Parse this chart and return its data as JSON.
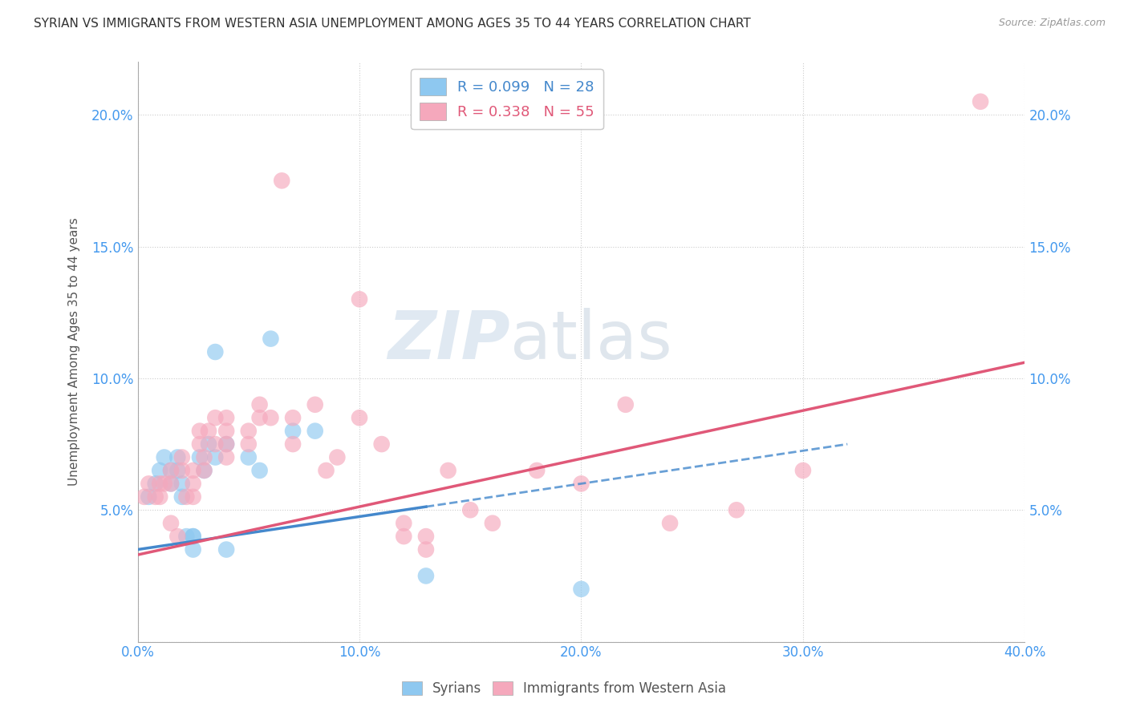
{
  "title": "SYRIAN VS IMMIGRANTS FROM WESTERN ASIA UNEMPLOYMENT AMONG AGES 35 TO 44 YEARS CORRELATION CHART",
  "source": "Source: ZipAtlas.com",
  "ylabel": "Unemployment Among Ages 35 to 44 years",
  "xlim": [
    0.0,
    0.4
  ],
  "ylim": [
    0.0,
    0.22
  ],
  "xticks": [
    0.0,
    0.1,
    0.2,
    0.3,
    0.4
  ],
  "xtick_labels": [
    "0.0%",
    "10.0%",
    "20.0%",
    "30.0%",
    "40.0%"
  ],
  "yticks": [
    0.0,
    0.05,
    0.1,
    0.15,
    0.2
  ],
  "ytick_labels": [
    "",
    "5.0%",
    "10.0%",
    "15.0%",
    "20.0%"
  ],
  "blue_R": 0.099,
  "blue_N": 28,
  "pink_R": 0.338,
  "pink_N": 55,
  "blue_color": "#8EC8F0",
  "pink_color": "#F5A8BC",
  "blue_trend_color": "#4488CC",
  "pink_trend_color": "#E05878",
  "blue_trend_style": "--",
  "pink_trend_style": "-",
  "watermark_zip": "ZIP",
  "watermark_atlas": "atlas",
  "legend_label_blue": "Syrians",
  "legend_label_pink": "Immigrants from Western Asia",
  "blue_x": [
    0.005,
    0.008,
    0.01,
    0.012,
    0.015,
    0.015,
    0.018,
    0.018,
    0.02,
    0.02,
    0.022,
    0.025,
    0.025,
    0.025,
    0.028,
    0.03,
    0.032,
    0.035,
    0.035,
    0.04,
    0.04,
    0.05,
    0.055,
    0.06,
    0.07,
    0.08,
    0.13,
    0.2
  ],
  "blue_y": [
    0.055,
    0.06,
    0.065,
    0.07,
    0.06,
    0.065,
    0.065,
    0.07,
    0.055,
    0.06,
    0.04,
    0.04,
    0.035,
    0.04,
    0.07,
    0.065,
    0.075,
    0.07,
    0.11,
    0.075,
    0.035,
    0.07,
    0.065,
    0.115,
    0.08,
    0.08,
    0.025,
    0.02
  ],
  "pink_x": [
    0.003,
    0.005,
    0.008,
    0.01,
    0.01,
    0.012,
    0.015,
    0.015,
    0.015,
    0.018,
    0.02,
    0.02,
    0.022,
    0.025,
    0.025,
    0.025,
    0.028,
    0.028,
    0.03,
    0.03,
    0.032,
    0.035,
    0.035,
    0.04,
    0.04,
    0.04,
    0.04,
    0.05,
    0.05,
    0.055,
    0.055,
    0.06,
    0.065,
    0.07,
    0.07,
    0.08,
    0.085,
    0.09,
    0.1,
    0.1,
    0.11,
    0.12,
    0.12,
    0.13,
    0.13,
    0.14,
    0.15,
    0.16,
    0.18,
    0.2,
    0.22,
    0.24,
    0.27,
    0.3,
    0.38
  ],
  "pink_y": [
    0.055,
    0.06,
    0.055,
    0.055,
    0.06,
    0.06,
    0.06,
    0.065,
    0.045,
    0.04,
    0.065,
    0.07,
    0.055,
    0.065,
    0.06,
    0.055,
    0.075,
    0.08,
    0.065,
    0.07,
    0.08,
    0.075,
    0.085,
    0.085,
    0.08,
    0.075,
    0.07,
    0.08,
    0.075,
    0.09,
    0.085,
    0.085,
    0.175,
    0.085,
    0.075,
    0.09,
    0.065,
    0.07,
    0.085,
    0.13,
    0.075,
    0.045,
    0.04,
    0.04,
    0.035,
    0.065,
    0.05,
    0.045,
    0.065,
    0.06,
    0.09,
    0.045,
    0.05,
    0.065,
    0.205
  ],
  "blue_trend_x0": 0.0,
  "blue_trend_x1": 0.32,
  "blue_trend_y0": 0.035,
  "blue_trend_y1": 0.075,
  "pink_trend_x0": 0.0,
  "pink_trend_x1": 0.4,
  "pink_trend_y0": 0.033,
  "pink_trend_y1": 0.106
}
